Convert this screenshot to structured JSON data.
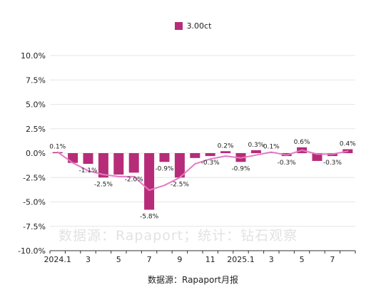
{
  "colors": {
    "bar": "#b72c78",
    "line": "#e27bc4",
    "grid": "#e6e6e6",
    "axis": "#333333"
  },
  "watermark": "数据源：Rapaport；统计：钻石观察",
  "source": "数据源：Rapaport月报",
  "chart_data": {
    "type": "bar",
    "categories": [
      "2024.1",
      "2024.2",
      "2024.3",
      "2024.4",
      "2024.5",
      "2024.6",
      "2024.7",
      "2024.8",
      "2024.9",
      "2024.10",
      "2024.11",
      "2024.12",
      "2025.1",
      "2025.2",
      "2025.3",
      "2025.4",
      "2025.5",
      "2025.6",
      "2025.7",
      "2025.8"
    ],
    "tick_labels": [
      "2024.1",
      "",
      "3",
      "",
      "5",
      "",
      "7",
      "",
      "9",
      "",
      "11",
      "",
      "2025.1",
      "",
      "3",
      "",
      "5",
      "",
      "7",
      ""
    ],
    "series": [
      {
        "name": "3.00ct",
        "type": "bar",
        "values": [
          0.1,
          -1.0,
          -1.1,
          -2.5,
          -2.2,
          -2.0,
          -5.8,
          -0.9,
          -2.5,
          -0.5,
          -0.3,
          0.2,
          -0.9,
          0.3,
          0.1,
          -0.3,
          0.6,
          -0.8,
          -0.3,
          0.4
        ]
      },
      {
        "type": "line",
        "values": [
          0.1,
          -1.0,
          -1.8,
          -2.2,
          -2.4,
          -2.4,
          -3.8,
          -3.3,
          -2.5,
          -1.1,
          -0.6,
          -0.3,
          -0.5,
          -0.2,
          0.1,
          -0.2,
          0.3,
          -0.1,
          -0.1,
          0.2
        ]
      }
    ],
    "data_labels": [
      {
        "i": 0,
        "text": "0.1%"
      },
      {
        "i": 2,
        "text": "-1.1%"
      },
      {
        "i": 3,
        "text": "-2.5%"
      },
      {
        "i": 5,
        "text": "-2.0%"
      },
      {
        "i": 6,
        "text": "-5.8%"
      },
      {
        "i": 7,
        "text": "-0.9%"
      },
      {
        "i": 8,
        "text": "-2.5%"
      },
      {
        "i": 10,
        "text": "-0.3%"
      },
      {
        "i": 11,
        "text": "0.2%"
      },
      {
        "i": 12,
        "text": "-0.9%"
      },
      {
        "i": 13,
        "text": "0.3%"
      },
      {
        "i": 14,
        "text": "0.1%"
      },
      {
        "i": 15,
        "text": "-0.3%"
      },
      {
        "i": 16,
        "text": "0.6%"
      },
      {
        "i": 18,
        "text": "-0.3%"
      },
      {
        "i": 19,
        "text": "0.4%"
      }
    ],
    "ylim": [
      -10,
      10
    ],
    "yticks": [
      10,
      7.5,
      5,
      2.5,
      0,
      -2.5,
      -5,
      -7.5,
      -10
    ],
    "ytick_labels": [
      "10.0%",
      "7.5%",
      "5.0%",
      "2.5%",
      "0.0%",
      "-2.5%",
      "-5.0%",
      "-7.5%",
      "-10.0%"
    ],
    "grid": true,
    "legend_position": "top-center",
    "xlabel": "",
    "ylabel": ""
  }
}
